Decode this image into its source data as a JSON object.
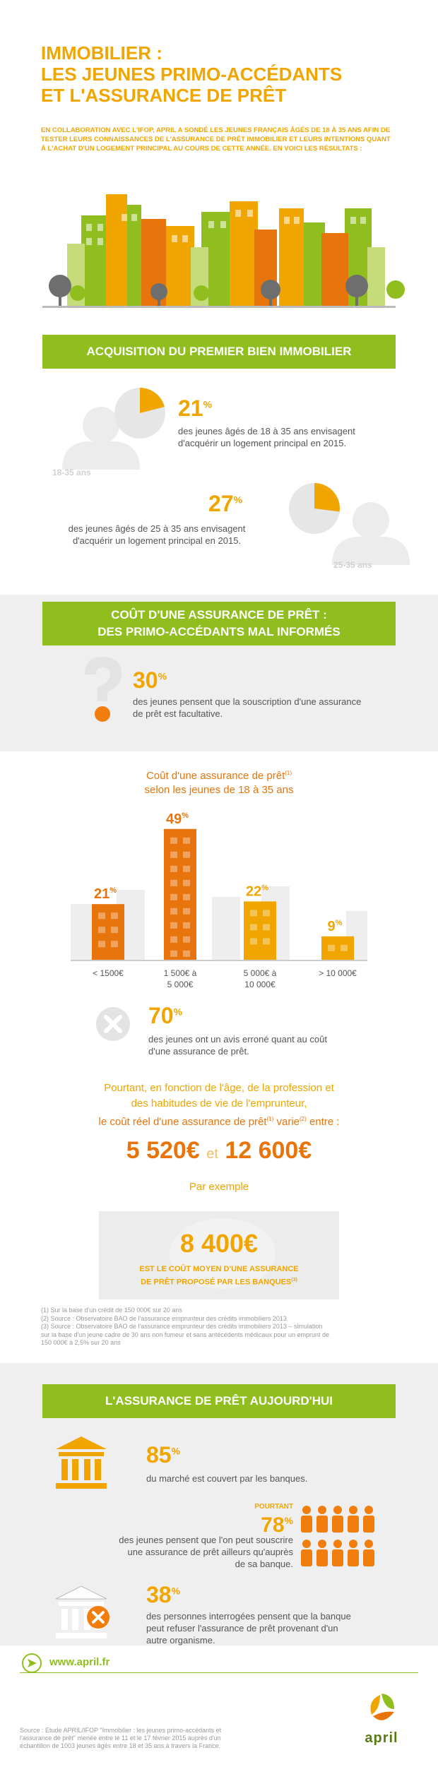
{
  "header": {
    "title_line1": "IMMOBILIER :",
    "title_line2": "LES JEUNES PRIMO-ACCÉDANTS",
    "title_line3": "ET L'ASSURANCE DE PRÊT",
    "intro": "EN COLLABORATION AVEC L'IFOP, APRIL A SONDÉ LES JEUNES FRANÇAIS ÂGÉS DE 18 À 35 ANS AFIN DE TESTER LEURS CONNAISSANCES DE L'ASSURANCE DE PRÊT IMMOBILIER ET LEURS INTENTIONS QUANT À L'ACHAT D'UN LOGEMENT PRINCIPAL AU COURS DE CETTE ANNÉE. EN VOICI LES RÉSULTATS :"
  },
  "section1": {
    "banner": "ACQUISITION DU PREMIER BIEN IMMOBILIER",
    "stat1": {
      "value": "21",
      "unit": "%",
      "text": "des  jeunes âgés de 18 à 35 ans envisagent d'acquérir un logement principal en 2015.",
      "age": "18-35 ans",
      "fraction": 0.21
    },
    "stat2": {
      "value": "27",
      "unit": "%",
      "text": "des jeunes âgés de 25 à 35 ans envisagent d'acquérir un logement principal en 2015.",
      "age": "25-35 ans",
      "fraction": 0.27
    }
  },
  "section2": {
    "banner_line1": "COÛT D'UNE ASSURANCE DE PRÊT :",
    "banner_line2": "DES PRIMO-ACCÉDANTS MAL INFORMÉS",
    "stat": {
      "value": "30",
      "unit": "%",
      "text": "des jeunes pensent que la souscription d'une assurance de prêt est facultative."
    }
  },
  "section3": {
    "chart_title_line1": "Coût d'une assurance de prêt",
    "chart_title_sup": "(1)",
    "chart_title_line2": "selon les jeunes de 18 à 35 ans",
    "chart_data": {
      "type": "bar",
      "categories": [
        "< 1500€",
        "1 500€ à 5 000€",
        "5 000€ à 10 000€",
        "> 10 000€"
      ],
      "category_lines": [
        [
          "< 1500€"
        ],
        [
          "1 500€ à",
          "5 000€"
        ],
        [
          "5 000€ à",
          "10 000€"
        ],
        [
          "> 10 000€"
        ]
      ],
      "values": [
        21,
        49,
        22,
        9
      ],
      "labels": [
        "21",
        "49",
        "22",
        "9"
      ],
      "unit": "%"
    },
    "stat": {
      "value": "70",
      "unit": "%",
      "text": "des jeunes ont un avis erroné quant au coût d'une assurance de prêt."
    },
    "real_line1": "Pourtant, en fonction de l'âge, de la profession et",
    "real_line2": "des habitudes de vie de l'emprunteur,",
    "real_line3a": "le coût réel d'une assurance de prêt",
    "real_sup1": "(1)",
    "real_line3b": " varie",
    "real_sup2": "(2)",
    "real_line3c": " entre :",
    "range_low": "5 520€",
    "range_and": "et",
    "range_high": "12 600€",
    "example": "Par exemple",
    "avg_value": "8 400€",
    "avg_line1": "EST LE COÛT MOYEN D'UNE ASSURANCE",
    "avg_line2": "DE PRÊT PROPOSÉ PAR LES BANQUES",
    "avg_sup": "(3)",
    "notes": [
      "(1) Sur la base d'un crédit de 150 000€ sur 20 ans",
      "(2) Source : Observatoire BAO de l'assurance emprunteur des crédits immobiliers 2013",
      "(3) Source : Observatoire BAO de l'assurance emprunteur des crédits immobiliers 2013 – simulation",
      "sur la base d'un jeune cadre de 30 ans non fumeur et sans antécédents médicaux pour un emprunt de",
      "150 000€ à 2,5% sur 20 ans"
    ]
  },
  "section4": {
    "banner": "L'ASSURANCE DE PRÊT AUJOURD'HUI",
    "stat1": {
      "value": "85",
      "unit": "%",
      "text": "du marché est couvert par les banques."
    },
    "stat2": {
      "prefix": "POURTANT",
      "value": "78",
      "unit": "%",
      "line1": "des jeunes pensent que l'on peut souscrire",
      "line2": "une assurance de prêt ailleurs qu'auprès",
      "line3": "de sa banque."
    },
    "stat3": {
      "value": "38",
      "unit": "%",
      "line1": "des personnes interrogées pensent que la banque",
      "line2": "peut refuser l'assurance de prêt provenant d'un",
      "line3": "autre organisme."
    }
  },
  "footer": {
    "url": "www.april.fr",
    "logo": "april",
    "source_line1": "Source : Etude APRIL/IFOP \"Immobilier : les jeunes primo-accédants et",
    "source_line2": "l'assurance de prêt\" menée entre le 11 et le 17 février 2015 auprès d'un",
    "source_line3": "échantillon de 1003 jeunes âgés entre 18 et 35 ans à travers la France."
  },
  "colors": {
    "green": "#8fbe1e",
    "yellow": "#f0a500",
    "orange": "#e8740c",
    "gray": "#efeff0"
  }
}
